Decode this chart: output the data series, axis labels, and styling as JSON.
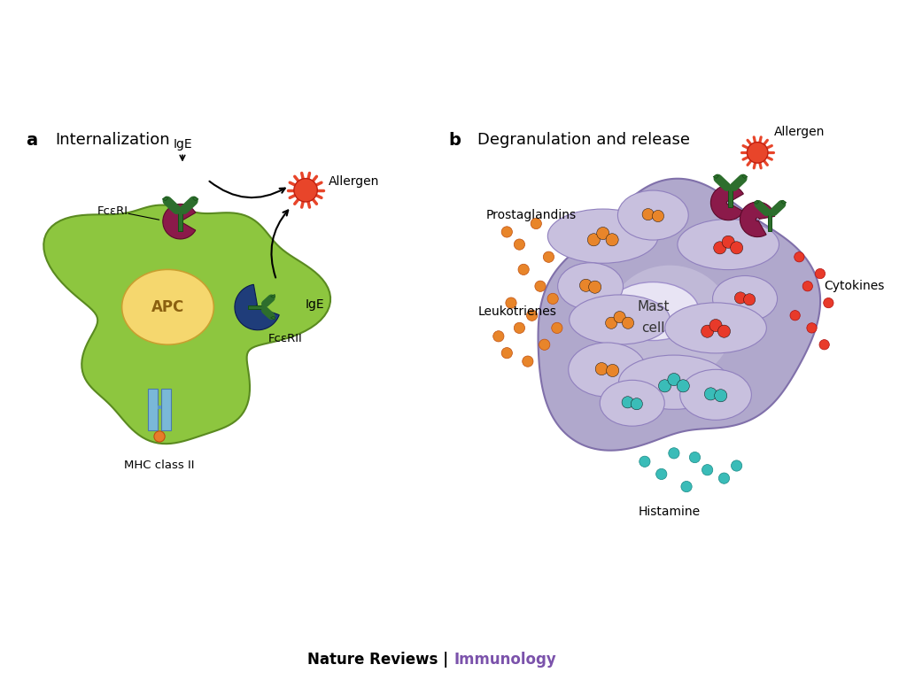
{
  "background_color": "#ffffff",
  "panel_a_title": "Internalization",
  "panel_b_title": "Degranulation and release",
  "label_a": "a",
  "label_b": "b",
  "footer_text_black": "Nature Reviews | ",
  "footer_text_color": "Immunology",
  "footer_color": "#7b52ab",
  "colors": {
    "apc_cell_outer": "#8dc63f",
    "apc_cell_inner": "#f5d76e",
    "receptor_FcRI": "#8b1a4a",
    "receptor_FcRII": "#1f3d7a",
    "ige_antibody": "#2d6e2d",
    "allergen": "#e8452a",
    "mhc_body": "#7ab8d8",
    "mhc_dot": "#e87c2a",
    "mast_cell": "#b0a8cc",
    "mast_cell_inner": "#d4cfe8",
    "granule_orange": "#e8852a",
    "granule_red": "#e83a2a",
    "granule_teal": "#3abcb8",
    "arrow_color": "#222222",
    "text_color": "#222222"
  }
}
